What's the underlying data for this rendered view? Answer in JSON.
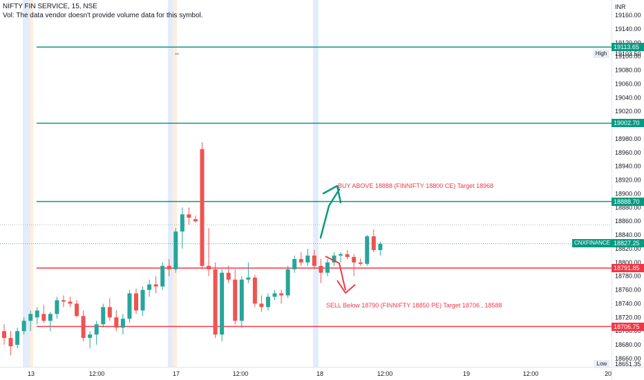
{
  "header": {
    "title": "NIFTY FIN SERVICE, 15, NSE",
    "volume_note": "Vol: The data vendor doesn't provide volume data for this symbol."
  },
  "colors": {
    "up": "#26a69a",
    "down": "#ef5350",
    "level_green": "#089981",
    "level_red": "#f23645",
    "text_red": "#f23645",
    "axis_text": "#131722",
    "session_shade": "#dbe7fb",
    "session_shade_orange": "#fde8d4"
  },
  "price_axis": {
    "currency": "INR",
    "ticks": [
      "19160.00",
      "19140.00",
      "19120.00",
      "19100.00",
      "19080.00",
      "19060.00",
      "19040.00",
      "19020.00",
      "19000.00",
      "18980.00",
      "18960.00",
      "18940.00",
      "18920.00",
      "18900.00",
      "18880.00",
      "18860.00",
      "18840.00",
      "18820.00",
      "18800.00",
      "18780.00",
      "18760.00",
      "18740.00",
      "18720.00",
      "18700.00",
      "18680.00",
      "18660.00"
    ],
    "high_label": "High",
    "high_value": "19103.50",
    "low_label": "Low",
    "low_value": "18651.35"
  },
  "time_axis": {
    "ticks": [
      "13",
      "12:00",
      "17",
      "12:00",
      "18",
      "12:00",
      "19",
      "12:00",
      "20"
    ]
  },
  "levels": [
    {
      "price": 19113.65,
      "label": "19113.65",
      "color": "#089981"
    },
    {
      "price": 19002.7,
      "label": "19002.70",
      "color": "#089981"
    },
    {
      "price": 18888.7,
      "label": "18888.70",
      "color": "#089981"
    },
    {
      "price": 18791.85,
      "label": "18791.85",
      "color": "#f23645"
    },
    {
      "price": 18706.75,
      "label": "18706.75",
      "color": "#f23645"
    }
  ],
  "last_price": {
    "symbol": "CNXFINANCE",
    "value": "18827.25"
  },
  "annotations": {
    "buy": "BUY ABOVE 18888 (FINNIFTY 18800 CE) Target 18968",
    "sell": "SELL Below 18790  (FINNIFTY 18850 PE) Target 18706 , 18588"
  },
  "chart_data": {
    "type": "candlestick",
    "title": "NIFTY FIN SERVICE, 15, NSE",
    "ylabel": "INR",
    "ylim": [
      18645,
      19175
    ],
    "x_labels": [
      "13",
      "12:00",
      "17",
      "12:00",
      "18",
      "12:00",
      "19",
      "12:00",
      "20"
    ],
    "candles": [
      {
        "o": 18700,
        "h": 18710,
        "l": 18680,
        "c": 18690
      },
      {
        "o": 18690,
        "h": 18700,
        "l": 18665,
        "c": 18678
      },
      {
        "o": 18680,
        "h": 18705,
        "l": 18675,
        "c": 18700
      },
      {
        "o": 18700,
        "h": 18720,
        "l": 18695,
        "c": 18715
      },
      {
        "o": 18715,
        "h": 18730,
        "l": 18700,
        "c": 18725
      },
      {
        "o": 18720,
        "h": 18735,
        "l": 18710,
        "c": 18730
      },
      {
        "o": 18725,
        "h": 18738,
        "l": 18712,
        "c": 18715
      },
      {
        "o": 18715,
        "h": 18728,
        "l": 18700,
        "c": 18725
      },
      {
        "o": 18725,
        "h": 18750,
        "l": 18718,
        "c": 18745
      },
      {
        "o": 18745,
        "h": 18752,
        "l": 18735,
        "c": 18743
      },
      {
        "o": 18743,
        "h": 18750,
        "l": 18735,
        "c": 18740
      },
      {
        "o": 18740,
        "h": 18745,
        "l": 18720,
        "c": 18722
      },
      {
        "o": 18722,
        "h": 18730,
        "l": 18685,
        "c": 18690
      },
      {
        "o": 18690,
        "h": 18700,
        "l": 18675,
        "c": 18695
      },
      {
        "o": 18695,
        "h": 18715,
        "l": 18680,
        "c": 18710
      },
      {
        "o": 18710,
        "h": 18740,
        "l": 18705,
        "c": 18735
      },
      {
        "o": 18735,
        "h": 18748,
        "l": 18715,
        "c": 18720
      },
      {
        "o": 18720,
        "h": 18730,
        "l": 18700,
        "c": 18705
      },
      {
        "o": 18705,
        "h": 18725,
        "l": 18695,
        "c": 18718
      },
      {
        "o": 18718,
        "h": 18760,
        "l": 18712,
        "c": 18755
      },
      {
        "o": 18755,
        "h": 18762,
        "l": 18725,
        "c": 18730
      },
      {
        "o": 18730,
        "h": 18765,
        "l": 18722,
        "c": 18760
      },
      {
        "o": 18760,
        "h": 18775,
        "l": 18750,
        "c": 18768
      },
      {
        "o": 18768,
        "h": 18780,
        "l": 18755,
        "c": 18765
      },
      {
        "o": 18765,
        "h": 18800,
        "l": 18760,
        "c": 18795
      },
      {
        "o": 18795,
        "h": 18805,
        "l": 18780,
        "c": 18790
      },
      {
        "o": 18790,
        "h": 18850,
        "l": 18785,
        "c": 18845
      },
      {
        "o": 18845,
        "h": 18880,
        "l": 18820,
        "c": 18870
      },
      {
        "o": 18870,
        "h": 18880,
        "l": 18855,
        "c": 18865
      },
      {
        "o": 18863,
        "h": 18868,
        "l": 18858,
        "c": 18860
      },
      {
        "o": 18965,
        "h": 18975,
        "l": 18790,
        "c": 18795
      },
      {
        "o": 18795,
        "h": 18850,
        "l": 18780,
        "c": 18790
      },
      {
        "o": 18790,
        "h": 18800,
        "l": 18690,
        "c": 18695
      },
      {
        "o": 18695,
        "h": 18790,
        "l": 18685,
        "c": 18785
      },
      {
        "o": 18785,
        "h": 18795,
        "l": 18770,
        "c": 18775
      },
      {
        "o": 18775,
        "h": 18790,
        "l": 18710,
        "c": 18715
      },
      {
        "o": 18715,
        "h": 18780,
        "l": 18705,
        "c": 18775
      },
      {
        "o": 18775,
        "h": 18800,
        "l": 18770,
        "c": 18778
      },
      {
        "o": 18778,
        "h": 18782,
        "l": 18735,
        "c": 18740
      },
      {
        "o": 18740,
        "h": 18752,
        "l": 18728,
        "c": 18735
      },
      {
        "o": 18735,
        "h": 18755,
        "l": 18730,
        "c": 18750
      },
      {
        "o": 18750,
        "h": 18760,
        "l": 18745,
        "c": 18755
      },
      {
        "o": 18755,
        "h": 18760,
        "l": 18740,
        "c": 18752
      },
      {
        "o": 18752,
        "h": 18795,
        "l": 18748,
        "c": 18790
      },
      {
        "o": 18790,
        "h": 18810,
        "l": 18785,
        "c": 18805
      },
      {
        "o": 18805,
        "h": 18815,
        "l": 18795,
        "c": 18800
      },
      {
        "o": 18800,
        "h": 18820,
        "l": 18795,
        "c": 18810
      },
      {
        "o": 18810,
        "h": 18818,
        "l": 18790,
        "c": 18795
      },
      {
        "o": 18795,
        "h": 18805,
        "l": 18770,
        "c": 18785
      },
      {
        "o": 18785,
        "h": 18805,
        "l": 18780,
        "c": 18800
      },
      {
        "o": 18800,
        "h": 18815,
        "l": 18795,
        "c": 18810
      },
      {
        "o": 18810,
        "h": 18815,
        "l": 18800,
        "c": 18812
      },
      {
        "o": 18812,
        "h": 18818,
        "l": 18805,
        "c": 18808
      },
      {
        "o": 18808,
        "h": 18812,
        "l": 18780,
        "c": 18800
      },
      {
        "o": 18800,
        "h": 18806,
        "l": 18795,
        "c": 18798
      },
      {
        "o": 18798,
        "h": 18840,
        "l": 18795,
        "c": 18838
      },
      {
        "o": 18838,
        "h": 18848,
        "l": 18815,
        "c": 18818
      },
      {
        "o": 18818,
        "h": 18830,
        "l": 18810,
        "c": 18827
      }
    ]
  }
}
